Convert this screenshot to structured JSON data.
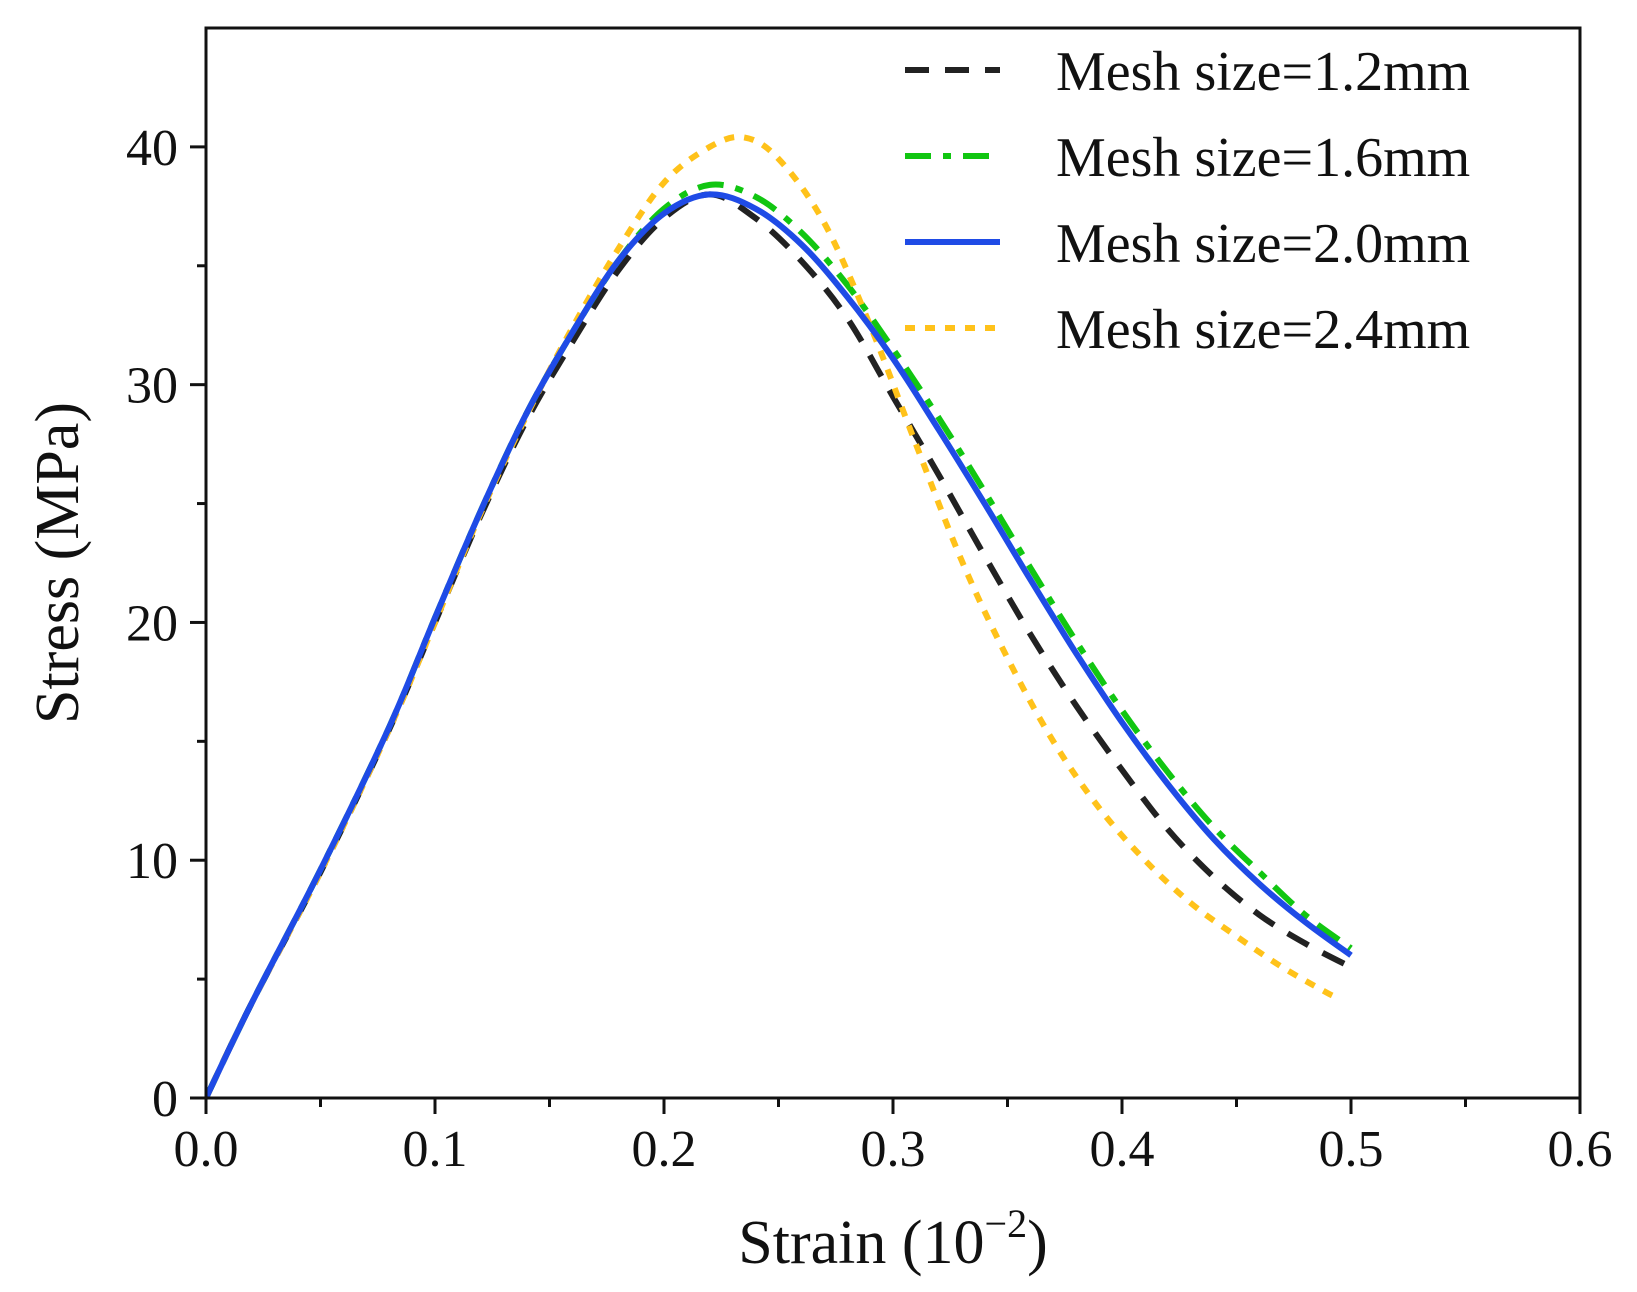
{
  "chart_data": {
    "type": "line",
    "title": "",
    "xlabel_base": "Strain (10",
    "xlabel_exp": "−2",
    "xlabel_close": ")",
    "ylabel": "Stress (MPa)",
    "xlim": [
      0.0,
      0.6
    ],
    "ylim": [
      0,
      45
    ],
    "grid": false,
    "legend_position": "top-right",
    "x_ticks": [
      0.0,
      0.1,
      0.2,
      0.3,
      0.4,
      0.5,
      0.6
    ],
    "x_tick_labels": [
      "0.0",
      "0.1",
      "0.2",
      "0.3",
      "0.4",
      "0.5",
      "0.6"
    ],
    "x_minor_ticks": [
      0.05,
      0.15,
      0.25,
      0.35,
      0.45,
      0.55
    ],
    "y_ticks": [
      0,
      10,
      20,
      30,
      40
    ],
    "y_tick_labels": [
      "0",
      "10",
      "20",
      "30",
      "40"
    ],
    "y_minor_ticks": [
      5,
      15,
      25,
      35
    ],
    "series": [
      {
        "name": "Mesh size=1.2mm",
        "color": "#222222",
        "dash": "dashed",
        "points": [
          [
            0,
            0
          ],
          [
            0.02,
            4
          ],
          [
            0.05,
            9.5
          ],
          [
            0.08,
            15.5
          ],
          [
            0.1,
            20
          ],
          [
            0.12,
            24.5
          ],
          [
            0.14,
            28.5
          ],
          [
            0.16,
            31.8
          ],
          [
            0.18,
            34.8
          ],
          [
            0.2,
            37
          ],
          [
            0.22,
            38
          ],
          [
            0.24,
            37
          ],
          [
            0.26,
            35.2
          ],
          [
            0.28,
            32.8
          ],
          [
            0.3,
            29.5
          ],
          [
            0.32,
            26.2
          ],
          [
            0.34,
            22.8
          ],
          [
            0.36,
            19.5
          ],
          [
            0.38,
            16.5
          ],
          [
            0.4,
            13.8
          ],
          [
            0.42,
            11.3
          ],
          [
            0.44,
            9.3
          ],
          [
            0.46,
            7.7
          ],
          [
            0.48,
            6.5
          ],
          [
            0.5,
            5.5
          ]
        ]
      },
      {
        "name": "Mesh size=1.6mm",
        "color": "#11c611",
        "dash": "dashdot",
        "points": [
          [
            0,
            0
          ],
          [
            0.02,
            4
          ],
          [
            0.05,
            9.6
          ],
          [
            0.08,
            15.6
          ],
          [
            0.1,
            20.2
          ],
          [
            0.12,
            24.7
          ],
          [
            0.14,
            28.8
          ],
          [
            0.16,
            32.2
          ],
          [
            0.18,
            35.2
          ],
          [
            0.2,
            37.4
          ],
          [
            0.22,
            38.4
          ],
          [
            0.24,
            37.9
          ],
          [
            0.26,
            36.4
          ],
          [
            0.28,
            34.2
          ],
          [
            0.3,
            31.5
          ],
          [
            0.32,
            28.6
          ],
          [
            0.34,
            25.5
          ],
          [
            0.36,
            22.3
          ],
          [
            0.38,
            19.2
          ],
          [
            0.4,
            16.3
          ],
          [
            0.42,
            13.7
          ],
          [
            0.44,
            11.4
          ],
          [
            0.46,
            9.5
          ],
          [
            0.48,
            7.7
          ],
          [
            0.5,
            6.3
          ]
        ]
      },
      {
        "name": "Mesh size=2.0mm",
        "color": "#1f4be6",
        "dash": "solid",
        "points": [
          [
            0,
            0
          ],
          [
            0.02,
            4
          ],
          [
            0.05,
            9.6
          ],
          [
            0.08,
            15.6
          ],
          [
            0.1,
            20.2
          ],
          [
            0.12,
            24.7
          ],
          [
            0.14,
            28.8
          ],
          [
            0.16,
            32.2
          ],
          [
            0.18,
            35.2
          ],
          [
            0.2,
            37.2
          ],
          [
            0.22,
            38
          ],
          [
            0.24,
            37.4
          ],
          [
            0.26,
            35.9
          ],
          [
            0.28,
            33.7
          ],
          [
            0.3,
            31.1
          ],
          [
            0.32,
            28.1
          ],
          [
            0.34,
            25
          ],
          [
            0.36,
            21.8
          ],
          [
            0.38,
            18.7
          ],
          [
            0.4,
            15.8
          ],
          [
            0.42,
            13.2
          ],
          [
            0.44,
            10.9
          ],
          [
            0.46,
            9
          ],
          [
            0.48,
            7.4
          ],
          [
            0.5,
            6
          ]
        ]
      },
      {
        "name": "Mesh size=2.4mm",
        "color": "#ffc21a",
        "dash": "dotted",
        "points": [
          [
            0,
            0
          ],
          [
            0.02,
            4
          ],
          [
            0.05,
            9.5
          ],
          [
            0.08,
            15.5
          ],
          [
            0.1,
            20
          ],
          [
            0.12,
            24.6
          ],
          [
            0.14,
            28.7
          ],
          [
            0.16,
            32.4
          ],
          [
            0.18,
            35.7
          ],
          [
            0.2,
            38.5
          ],
          [
            0.22,
            40
          ],
          [
            0.235,
            40.4
          ],
          [
            0.25,
            39.5
          ],
          [
            0.27,
            36.8
          ],
          [
            0.29,
            32.5
          ],
          [
            0.31,
            27.5
          ],
          [
            0.33,
            22.6
          ],
          [
            0.35,
            18.5
          ],
          [
            0.37,
            15
          ],
          [
            0.39,
            12.2
          ],
          [
            0.41,
            10
          ],
          [
            0.43,
            8.2
          ],
          [
            0.45,
            6.8
          ],
          [
            0.47,
            5.5
          ],
          [
            0.49,
            4.4
          ],
          [
            0.495,
            4.2
          ]
        ]
      }
    ]
  }
}
